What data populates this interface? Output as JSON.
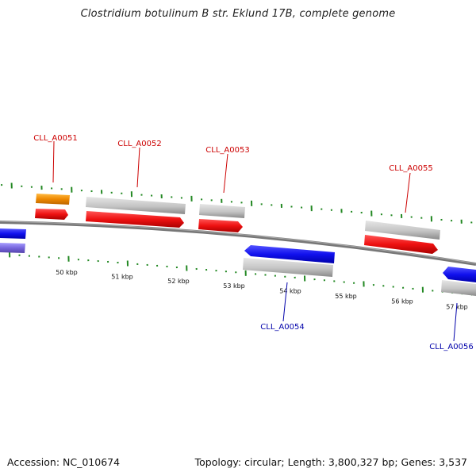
{
  "title": "Clostridium botulinum B str. Eklund 17B, complete genome",
  "footer": {
    "accession": "Accession: NC_010674",
    "stats": "Topology: circular; Length: 3,800,327 bp; Genes: 3,537"
  },
  "colors": {
    "label_forward": "#cc0000",
    "label_reverse": "#0000aa",
    "cds_red": "#ee1111",
    "cds_blue": "#1111ee",
    "cds_violet": "#7766dd",
    "cds_orange": "#ee8800",
    "gene_gray": "#bbbbbb",
    "backbone": "#777777",
    "tick_green": "#228822"
  },
  "ticks": [
    "50 kbp",
    "51 kbp",
    "52 kbp",
    "53 kbp",
    "54 kbp",
    "55 kbp",
    "56 kbp",
    "57 kbp"
  ],
  "genes": [
    {
      "id": "CLL_A0051",
      "strand": "forward",
      "cds_color": "orange"
    },
    {
      "id": "CLL_A0052",
      "strand": "forward",
      "cds_color": "red"
    },
    {
      "id": "CLL_A0053",
      "strand": "forward",
      "cds_color": "red"
    },
    {
      "id": "CLL_A0054",
      "strand": "reverse",
      "cds_color": "blue"
    },
    {
      "id": "CLL_A0055",
      "strand": "forward",
      "cds_color": "red"
    },
    {
      "id": "CLL_A0056",
      "strand": "reverse",
      "cds_color": "blue"
    }
  ]
}
